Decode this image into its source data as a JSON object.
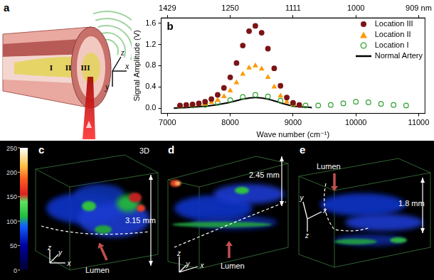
{
  "chart_data": {
    "type": "scatter",
    "annotations": [
      {
        "text": "b"
      }
    ],
    "x_label": "Wave number (cm⁻¹)",
    "y_label": "Signal Amplitude (V)",
    "xlim": [
      6900,
      11100
    ],
    "xticks": [
      7000,
      8000,
      9000,
      10000,
      11000
    ],
    "x2ticks": [
      {
        "value": 7000,
        "label": "1429"
      },
      {
        "value": 8000,
        "label": "1250"
      },
      {
        "value": 9000,
        "label": "1111"
      },
      {
        "value": 10000,
        "label": "1000"
      },
      {
        "value": 11000,
        "label": "909 nm"
      }
    ],
    "ylim": [
      -0.1,
      1.7
    ],
    "yticks": [
      {
        "value": 0,
        "label": "0.0"
      },
      0.4,
      0.8,
      1.2,
      1.6
    ],
    "grid": false,
    "legend": "upper right",
    "series": [
      {
        "name": "Location III",
        "color": "#7b1416",
        "marker": "circle",
        "x": [
          7200,
          7300,
          7400,
          7500,
          7600,
          7700,
          7800,
          7900,
          8000,
          8100,
          8200,
          8300,
          8400,
          8500,
          8600,
          8700,
          8800,
          8900,
          9000,
          9100
        ],
        "values": [
          0.05,
          0.06,
          0.07,
          0.09,
          0.12,
          0.17,
          0.25,
          0.38,
          0.58,
          0.85,
          1.18,
          1.45,
          1.55,
          1.42,
          1.12,
          0.75,
          0.42,
          0.2,
          0.1,
          0.06
        ]
      },
      {
        "name": "Location II",
        "color": "#ff9900",
        "marker": "triangle",
        "x": [
          7200,
          7300,
          7400,
          7500,
          7600,
          7700,
          7800,
          7900,
          8000,
          8100,
          8200,
          8300,
          8400,
          8500,
          8600,
          8700,
          8800,
          8900,
          9000,
          9100
        ],
        "values": [
          0.04,
          0.05,
          0.06,
          0.07,
          0.08,
          0.11,
          0.15,
          0.22,
          0.33,
          0.48,
          0.64,
          0.76,
          0.8,
          0.74,
          0.58,
          0.4,
          0.23,
          0.12,
          0.07,
          0.05
        ]
      },
      {
        "name": "Location I",
        "color": "#2e9e2e",
        "marker": "open circle",
        "x": [
          7200,
          7400,
          7600,
          7800,
          8000,
          8200,
          8400,
          8600,
          8800,
          9000,
          9200,
          9400,
          9600,
          9800,
          10000,
          10200,
          10400,
          10600,
          10800
        ],
        "values": [
          0.04,
          0.05,
          0.06,
          0.1,
          0.15,
          0.21,
          0.25,
          0.22,
          0.14,
          0.07,
          0.05,
          0.05,
          0.06,
          0.09,
          0.12,
          0.11,
          0.08,
          0.06,
          0.05
        ]
      },
      {
        "name": "Normal Artery",
        "color": "#000000",
        "type": "line",
        "marker": "none",
        "line_style": "solid",
        "x": [
          7100,
          7400,
          7700,
          8000,
          8200,
          8400,
          8600,
          8800,
          9000,
          9300
        ],
        "values": [
          0.0,
          0.02,
          0.05,
          0.11,
          0.17,
          0.2,
          0.17,
          0.1,
          0.04,
          0.01
        ]
      }
    ]
  },
  "panels": {
    "a": {
      "label": "a",
      "locations": [
        "I",
        "II",
        "III"
      ],
      "axes": {
        "z": "z",
        "x": "x",
        "y": "y"
      }
    },
    "colorbar": {
      "range": [
        0,
        250
      ],
      "ticks": [
        0,
        50,
        100,
        150,
        200,
        250
      ]
    },
    "c": {
      "label": "c",
      "tag": "3D",
      "size": "3.15 mm",
      "lumen": "Lumen",
      "axes": {
        "z": "z",
        "y": "y",
        "x": "x"
      }
    },
    "d": {
      "label": "d",
      "size": "2.45 mm",
      "lumen": "Lumen",
      "axes": {
        "z": "z",
        "y": "y",
        "x": "x"
      }
    },
    "e": {
      "label": "e",
      "size": "1.8 mm",
      "lumen": "Lumen",
      "axes": {
        "y": "y",
        "x": "x",
        "z": "z"
      }
    }
  }
}
